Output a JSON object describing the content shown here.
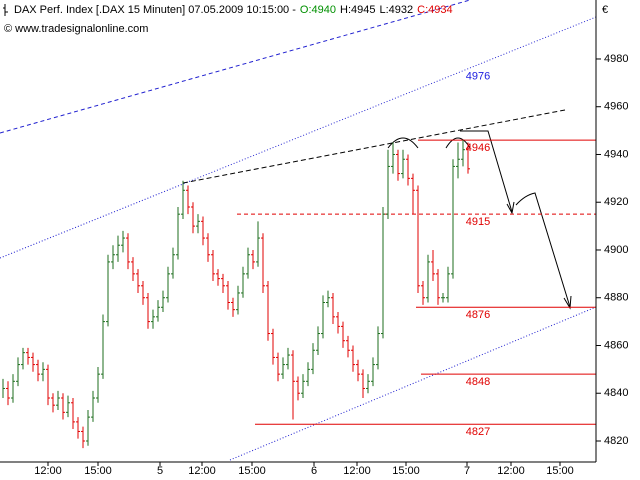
{
  "chart_data": {
    "type": "ohlc",
    "title": "DAX Perf. Index [.DAX  15 Minuten] 07.05.2009 10:15:00 -",
    "quote": [
      {
        "text": "O:4940",
        "color": "#009000"
      },
      {
        "text": "H:4945",
        "color": "#000000"
      },
      {
        "text": "L:4932",
        "color": "#000000"
      },
      {
        "text": "C:4934",
        "color": "#e00000"
      }
    ],
    "source": "© www.tradesignalonline.com",
    "currency": "€",
    "up_color": "#1e6e1e",
    "down_color": "#e00000",
    "xlim": [
      -0.6,
      118.6
    ],
    "xticks": [
      {
        "value": 9,
        "label": "12:00"
      },
      {
        "value": 19,
        "label": "15:00"
      },
      {
        "value": 31.4,
        "label": "5"
      },
      {
        "value": 39.8,
        "label": "12:00"
      },
      {
        "value": 49.8,
        "label": "15:00"
      },
      {
        "value": 62.2,
        "label": "6"
      },
      {
        "value": 70.8,
        "label": "12:00"
      },
      {
        "value": 80.6,
        "label": "15:00"
      },
      {
        "value": 92.8,
        "label": "7"
      },
      {
        "value": 101.6,
        "label": "12:00"
      },
      {
        "value": 111.4,
        "label": "15:00"
      }
    ],
    "ylim": [
      4811.2,
      5004.7
    ],
    "yticks": [
      4820,
      4840,
      4860,
      4880,
      4900,
      4920,
      4940,
      4960,
      4980
    ],
    "high": [
      4846,
      4845,
      4848,
      4855,
      4859,
      4859,
      4857,
      4854,
      4853,
      4852,
      4840,
      4841,
      4840,
      4839,
      4838,
      4830,
      4826,
      4833,
      4841,
      4851,
      4873,
      4898,
      4902,
      4906,
      4908,
      4907,
      4897,
      4892,
      4887,
      4882,
      4875,
      4879,
      4883,
      4893,
      4901,
      4918,
      4929,
      4927,
      4920,
      4915,
      4914,
      4907,
      4900,
      4892,
      4890,
      4887,
      4880,
      4885,
      4893,
      4901,
      4900,
      4912,
      4907,
      4887,
      4867,
      4857,
      4855,
      4859,
      4858,
      4847,
      4848,
      4853,
      4861,
      4868,
      4881,
      4883,
      4882,
      4874,
      4870,
      4864,
      4860,
      4854,
      4850,
      4848,
      4855,
      4868,
      4918,
      4942,
      4945,
      4942,
      4942,
      4940,
      4932,
      4927,
      4887,
      4898,
      4900,
      4892,
      4882,
      4893,
      4938,
      4945,
      4946,
      4945
    ],
    "low": [
      4838,
      4835,
      4836,
      4843,
      4850,
      4852,
      4849,
      4845,
      4845,
      4835,
      4832,
      4833,
      4829,
      4830,
      4825,
      4821,
      4817,
      4818,
      4828,
      4836,
      4846,
      4868,
      4892,
      4895,
      4899,
      4892,
      4887,
      4882,
      4877,
      4867,
      4867,
      4870,
      4874,
      4878,
      4888,
      4896,
      4913,
      4915,
      4907,
      4907,
      4902,
      4895,
      4887,
      4885,
      4882,
      4875,
      4872,
      4873,
      4880,
      4888,
      4892,
      4893,
      4882,
      4862,
      4852,
      4845,
      4846,
      4850,
      4829,
      4837,
      4838,
      4843,
      4848,
      4856,
      4863,
      4876,
      4869,
      4865,
      4859,
      4855,
      4849,
      4845,
      4838,
      4840,
      4843,
      4850,
      4863,
      4913,
      4932,
      4929,
      4930,
      4927,
      4915,
      4882,
      4877,
      4878,
      4887,
      4877,
      4878,
      4878,
      4888,
      4930,
      4935,
      4932
    ],
    "close": [
      4842,
      4838,
      4845,
      4852,
      4857,
      4855,
      4852,
      4848,
      4850,
      4838,
      4835,
      4838,
      4832,
      4836,
      4828,
      4824,
      4820,
      4830,
      4838,
      4848,
      4870,
      4895,
      4898,
      4902,
      4905,
      4895,
      4890,
      4885,
      4880,
      4870,
      4872,
      4876,
      4880,
      4890,
      4898,
      4915,
      4925,
      4918,
      4910,
      4912,
      4905,
      4898,
      4890,
      4888,
      4885,
      4878,
      4875,
      4882,
      4890,
      4898,
      4895,
      4905,
      4885,
      4865,
      4855,
      4848,
      4852,
      4856,
      4845,
      4840,
      4845,
      4850,
      4858,
      4865,
      4878,
      4880,
      4872,
      4868,
      4862,
      4858,
      4852,
      4848,
      4842,
      4845,
      4852,
      4865,
      4915,
      4935,
      4940,
      4932,
      4938,
      4930,
      4925,
      4885,
      4880,
      4895,
      4890,
      4880,
      4880,
      4890,
      4935,
      4938,
      4942,
      4934
    ],
    "levels": [
      {
        "value": 4976,
        "color": "#2020e0",
        "line": false
      },
      {
        "value": 4946,
        "color": "#e00000",
        "line": true,
        "dashed": false,
        "start": 83
      },
      {
        "value": 4915,
        "color": "#e00000",
        "line": true,
        "dashed": true,
        "start": 46.8
      },
      {
        "value": 4876,
        "color": "#e00000",
        "line": true,
        "dashed": false,
        "start": 82.6
      },
      {
        "value": 4848,
        "color": "#e00000",
        "line": true,
        "dashed": false,
        "start": 83.6
      },
      {
        "value": 4827,
        "color": "#e00000",
        "line": true,
        "dashed": false,
        "start": 50.4
      }
    ]
  }
}
